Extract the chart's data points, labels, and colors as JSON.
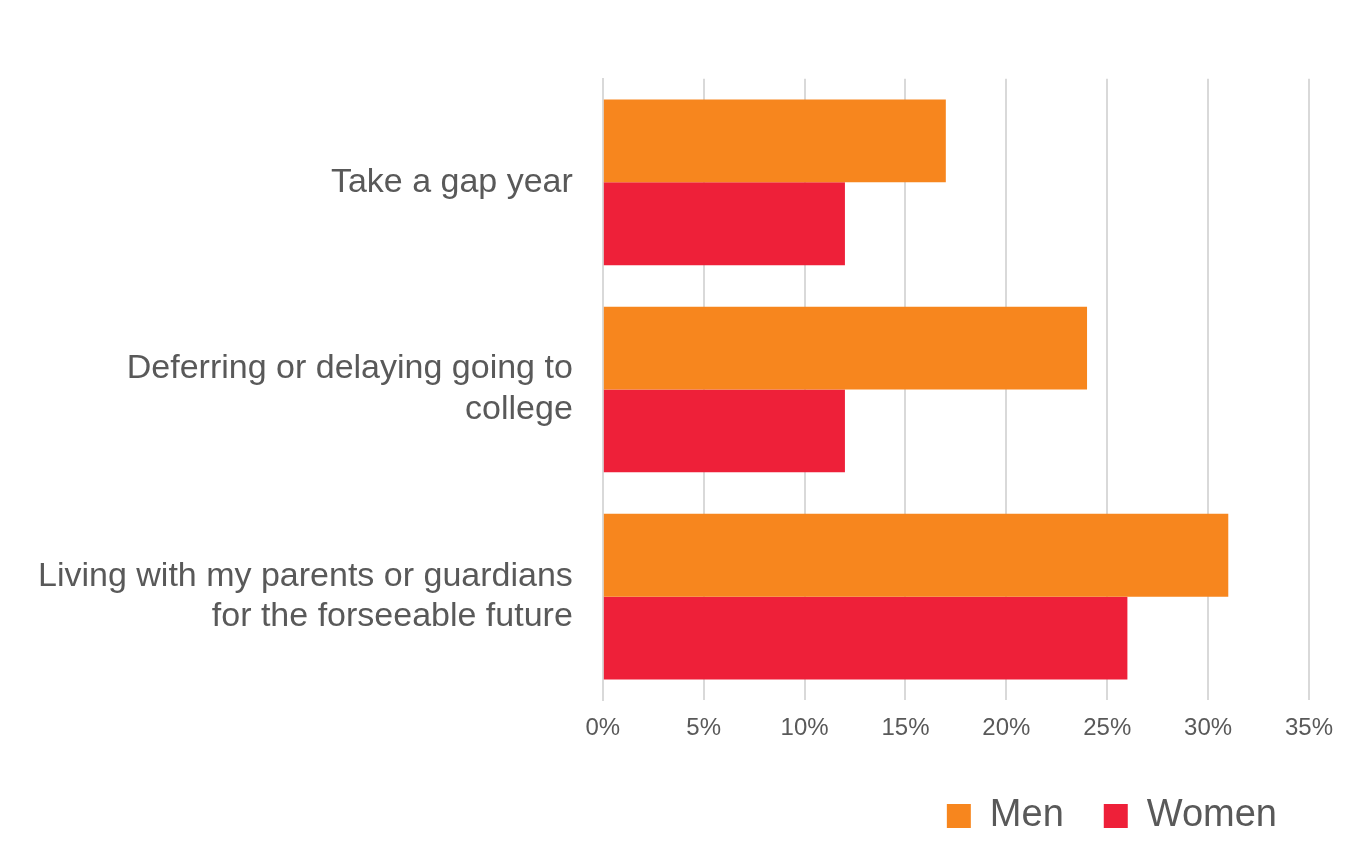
{
  "chart_data": {
    "type": "bar",
    "orientation": "horizontal",
    "categories": [
      "Take a gap year",
      "Deferring or delaying going to college",
      "Living with my parents or guardians for the forseeable future"
    ],
    "series": [
      {
        "name": "Men",
        "color": "#f7861e",
        "values": [
          17,
          24,
          31
        ]
      },
      {
        "name": "Women",
        "color": "#ee2039",
        "values": [
          12,
          12,
          26
        ]
      }
    ],
    "xlim": [
      0,
      35
    ],
    "xticks": [
      {
        "value": 0,
        "label": "0%"
      },
      {
        "value": 5,
        "label": "5%"
      },
      {
        "value": 10,
        "label": "10%"
      },
      {
        "value": 15,
        "label": "15%"
      },
      {
        "value": 20,
        "label": "20%"
      },
      {
        "value": 25,
        "label": "25%"
      },
      {
        "value": 30,
        "label": "30%"
      },
      {
        "value": 35,
        "label": "35%"
      }
    ],
    "grid": "x",
    "legend": "bottom"
  }
}
